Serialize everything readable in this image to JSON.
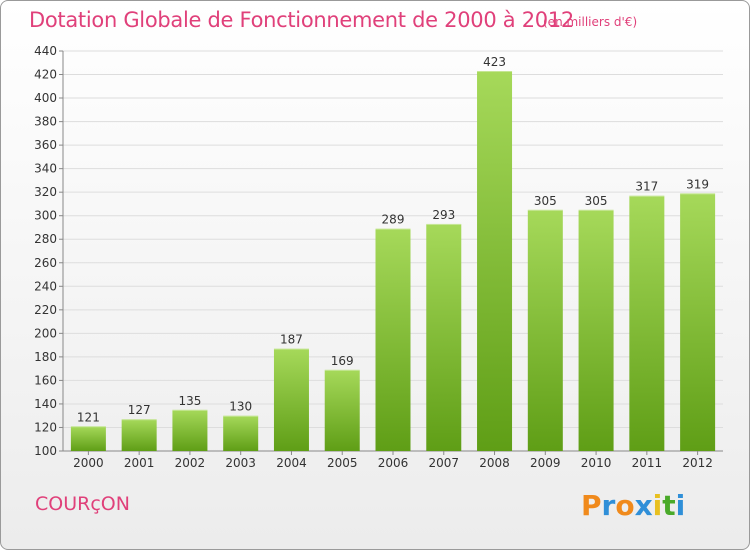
{
  "header": {
    "title": "Dotation Globale de Fonctionnement de 2000 à 2012",
    "subtitle": "(en milliers d'€)"
  },
  "footer": {
    "commune": "COURçON",
    "logo": "Proxiti"
  },
  "colors": {
    "title": "#e0407a",
    "bar_light": "#a6d95a",
    "bar_dark": "#5f9e16",
    "logo_letters": [
      "#f08a1c",
      "#2f8fd8",
      "#f08a1c",
      "#2f8fd8",
      "#e8c020",
      "#4aaa2a",
      "#2f8fd8"
    ]
  },
  "chart_data": {
    "type": "bar",
    "categories": [
      "2000",
      "2001",
      "2002",
      "2003",
      "2004",
      "2005",
      "2006",
      "2007",
      "2008",
      "2009",
      "2010",
      "2011",
      "2012"
    ],
    "values": [
      121,
      127,
      135,
      130,
      187,
      169,
      289,
      293,
      423,
      305,
      305,
      317,
      319
    ],
    "ylim": [
      100,
      440
    ],
    "yticks": [
      100,
      120,
      140,
      160,
      180,
      200,
      220,
      240,
      260,
      280,
      300,
      320,
      340,
      360,
      380,
      400,
      420,
      440
    ],
    "grid": "horizontal",
    "data_labels": true
  }
}
